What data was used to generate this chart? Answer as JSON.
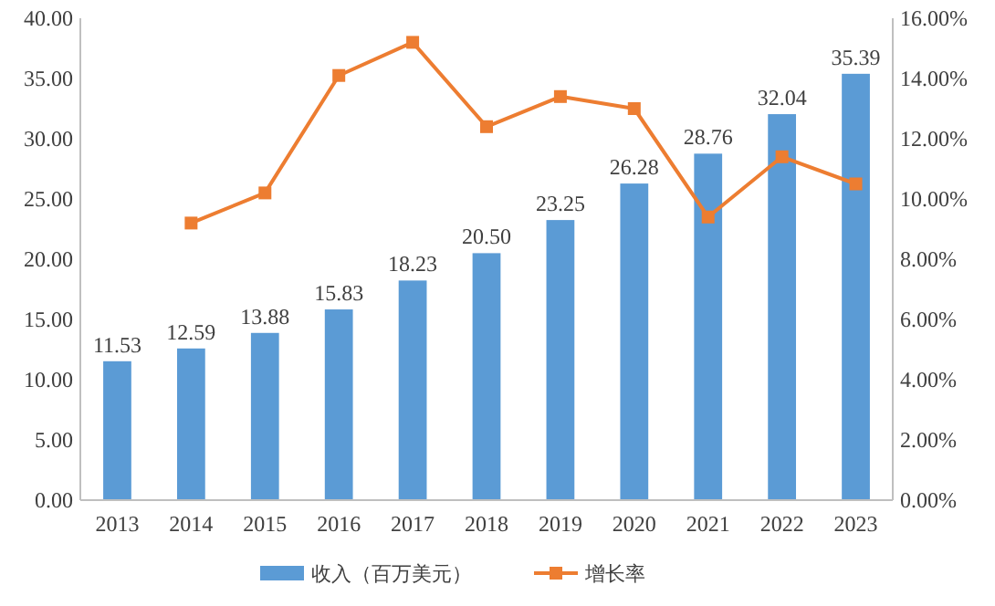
{
  "chart_data": {
    "type": "bar",
    "categories": [
      "2013",
      "2014",
      "2015",
      "2016",
      "2017",
      "2018",
      "2019",
      "2020",
      "2021",
      "2022",
      "2023"
    ],
    "series": [
      {
        "name": "收入（百万美元）",
        "color": "#5b9bd5",
        "values": [
          11.53,
          12.59,
          13.88,
          15.83,
          18.23,
          20.5,
          23.25,
          26.28,
          28.76,
          32.04,
          35.39
        ],
        "value_labels": [
          "11.53",
          "12.59",
          "13.88",
          "15.83",
          "18.23",
          "20.50",
          "23.25",
          "26.28",
          "28.76",
          "32.04",
          "35.39"
        ]
      },
      {
        "name": "增长率",
        "type": "line",
        "axis": "y2",
        "color": "#ed7d31",
        "marker": "square",
        "values": [
          null,
          9.2,
          10.2,
          14.1,
          15.2,
          12.4,
          13.4,
          13.0,
          9.4,
          11.4,
          10.5
        ]
      }
    ],
    "ylim": [
      0,
      40
    ],
    "yticks": [
      {
        "value": 0,
        "label": "0.00"
      },
      {
        "value": 5,
        "label": "5.00"
      },
      {
        "value": 10,
        "label": "10.00"
      },
      {
        "value": 15,
        "label": "15.00"
      },
      {
        "value": 20,
        "label": "20.00"
      },
      {
        "value": 25,
        "label": "25.00"
      },
      {
        "value": 30,
        "label": "30.00"
      },
      {
        "value": 35,
        "label": "35.00"
      },
      {
        "value": 40,
        "label": "40.00"
      }
    ],
    "y2lim": [
      0,
      16
    ],
    "y2ticks": [
      {
        "value": 0,
        "label": "0.00%"
      },
      {
        "value": 2,
        "label": "2.00%"
      },
      {
        "value": 4,
        "label": "4.00%"
      },
      {
        "value": 6,
        "label": "6.00%"
      },
      {
        "value": 8,
        "label": "8.00%"
      },
      {
        "value": 10,
        "label": "10.00%"
      },
      {
        "value": 12,
        "label": "12.00%"
      },
      {
        "value": 14,
        "label": "14.00%"
      },
      {
        "value": 16,
        "label": "16.00%"
      }
    ],
    "legend": "bottom"
  }
}
